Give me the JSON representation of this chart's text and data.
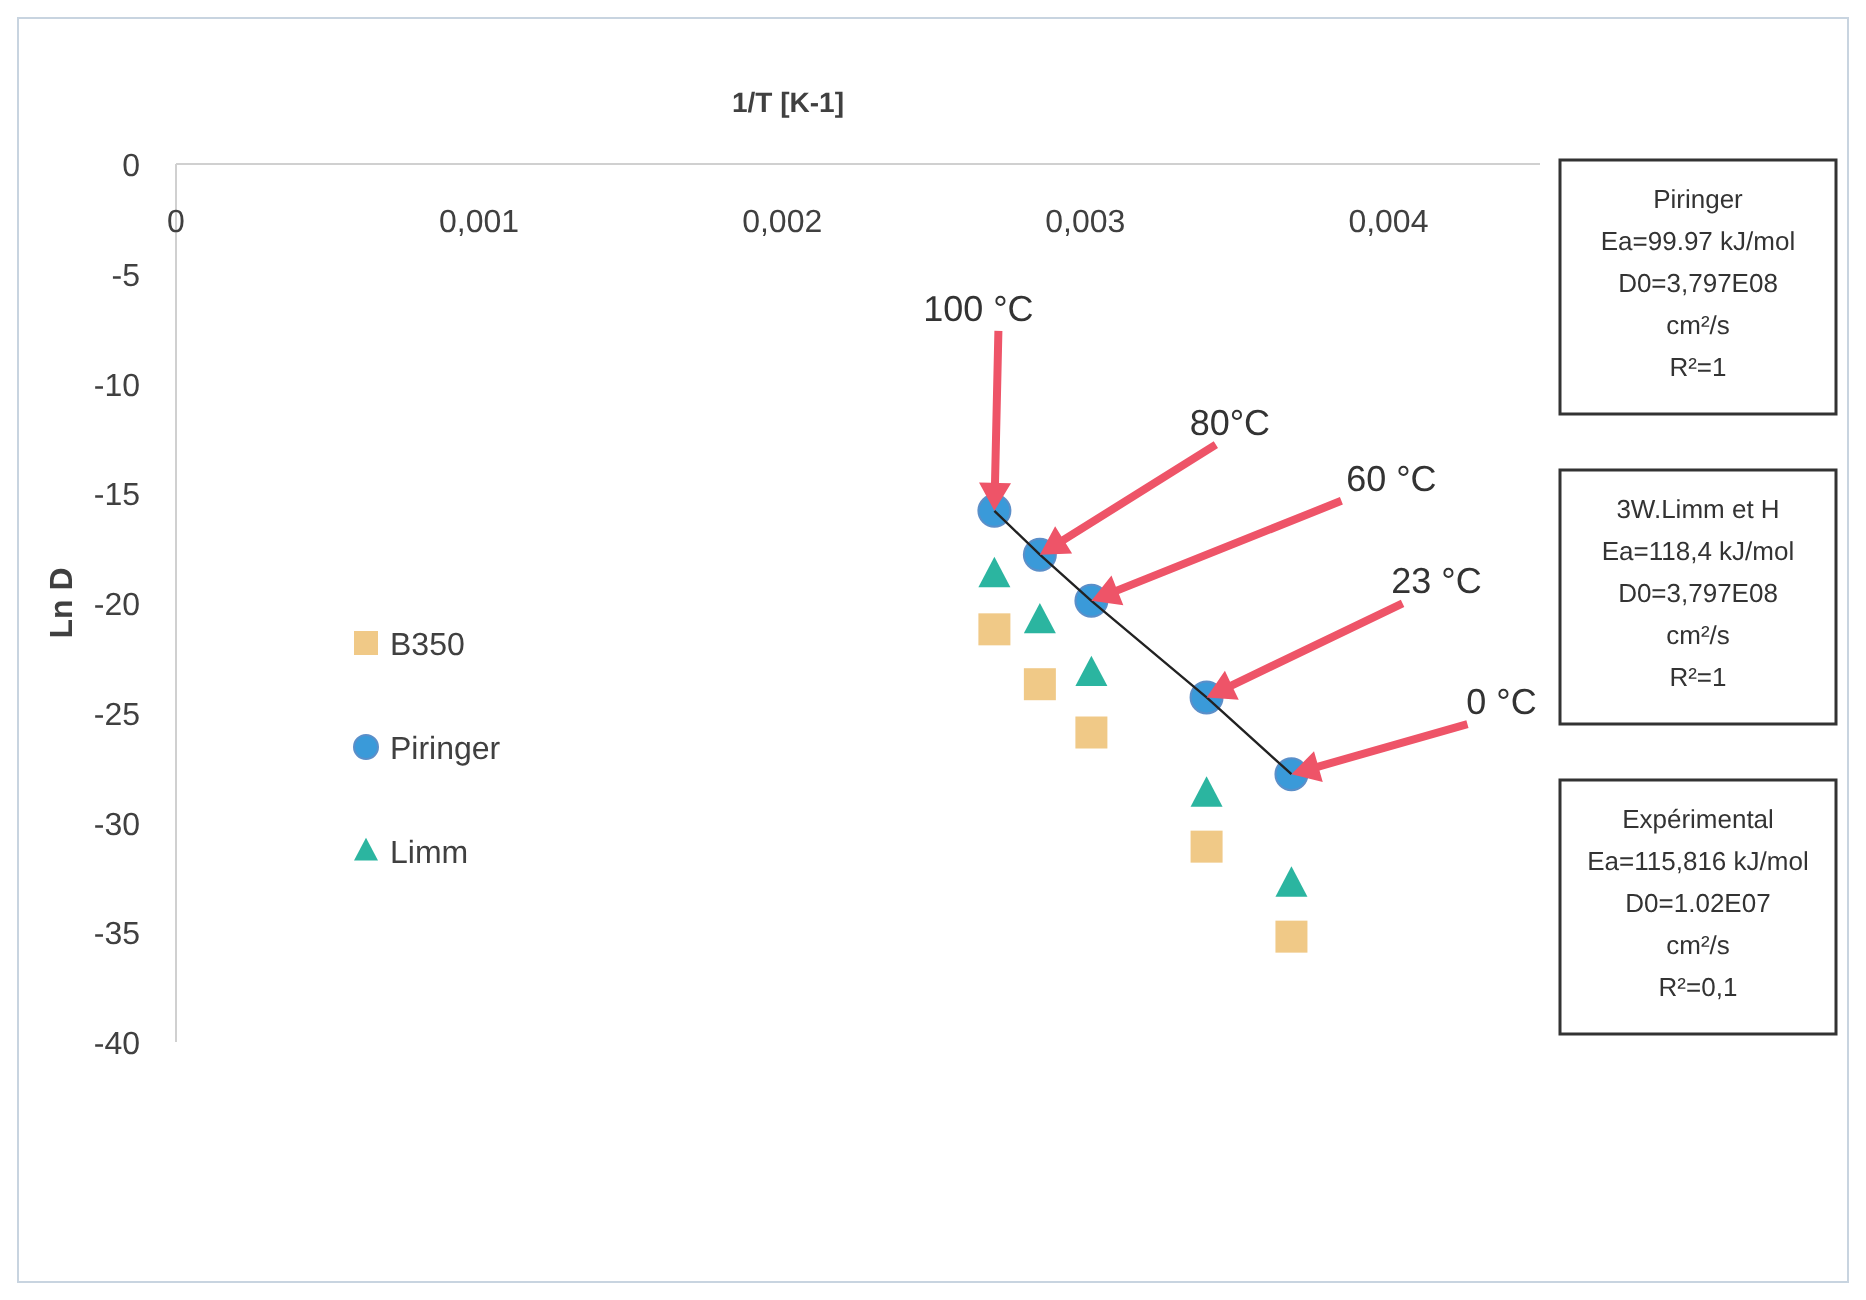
{
  "chart_data": {
    "type": "scatter",
    "xlabel": "1/T [K-1]",
    "ylabel": "Ln D",
    "xlim": [
      0,
      0.0045
    ],
    "ylim": [
      -40,
      0
    ],
    "xticks": [
      0,
      {
        "value": 0.001,
        "label": "0,001"
      },
      {
        "value": 0.002,
        "label": "0,002"
      },
      {
        "value": 0.003,
        "label": "0,003"
      },
      {
        "value": 0.004,
        "label": "0,004"
      }
    ],
    "yticks": [
      0,
      -5,
      -10,
      -15,
      -20,
      -25,
      -30,
      -35,
      -40
    ],
    "grid": false,
    "legend": "left",
    "series": [
      {
        "name": "B350",
        "color": "#f0c987",
        "marker": "square",
        "x": [
          0.0027,
          0.00285,
          0.00302,
          0.0034,
          0.00368
        ],
        "values": [
          -21.2,
          -23.7,
          -25.9,
          -31.1,
          -35.2
        ]
      },
      {
        "name": "Piringer",
        "color": "#3a9ad9",
        "marker": "circle",
        "x": [
          0.0027,
          0.00285,
          0.00302,
          0.0034,
          0.00368
        ],
        "values": [
          -15.8,
          -17.8,
          -19.9,
          -24.3,
          -27.8
        ]
      },
      {
        "name": "Limm",
        "color": "#2bb5a0",
        "marker": "triangle",
        "x": [
          0.0027,
          0.00285,
          0.00302,
          0.0034,
          0.00368
        ],
        "values": [
          -18.7,
          -20.8,
          -23.2,
          -28.7,
          -32.8
        ]
      },
      {
        "type": "line",
        "color": "#222222",
        "marker": "none",
        "x": [
          0.0027,
          0.00285,
          0.00302,
          0.0034,
          0.00368
        ],
        "values": [
          -15.8,
          -17.8,
          -19.9,
          -24.3,
          -27.8
        ]
      }
    ],
    "annotations": [
      "100 °C",
      "80°C",
      "60 °C",
      "23 °C",
      "0 °C",
      "Piringer\nEa=99.97 kJ/mol\nD0=3,797E08\ncm²/s\nR²=1",
      "3W.Limm et H\nEa=118,4 kJ/mol\nD0=3,797E08\ncm²/s\nR²=1",
      "Expérimental\nEa=115,816 kJ/mol\nD0=1.02E07\ncm²/s\nR²=0,1"
    ]
  }
}
